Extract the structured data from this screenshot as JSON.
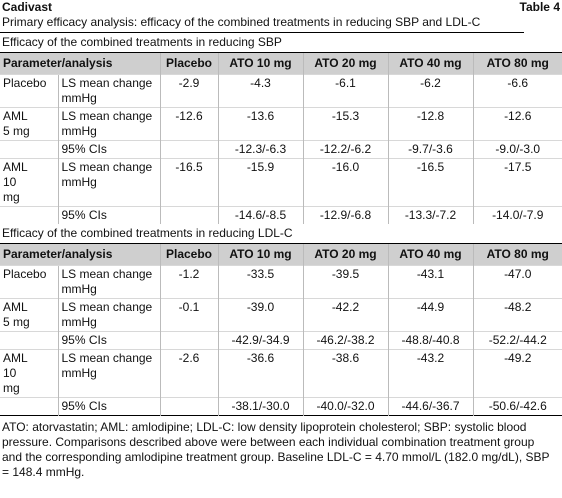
{
  "header": {
    "brand": "Cadivast",
    "table_label": "Table 4",
    "title": "Primary efficacy analysis: efficacy of the combined treatments in reducing SBP and LDL-C"
  },
  "columns": [
    "Parameter/analysis",
    "Placebo",
    "ATO 10 mg",
    "ATO 20 mg",
    "ATO 40 mg",
    "ATO 80 mg"
  ],
  "sections": [
    {
      "title": "Efficacy of the combined treatments in reducing SBP",
      "rows": [
        {
          "group": "Placebo",
          "analysis": "LS mean change mmHg",
          "cells": [
            "-2.9",
            "-4.3",
            "-6.1",
            "-6.2",
            "-6.6"
          ]
        },
        {
          "group": "AML 5 mg",
          "analysis": "LS mean change mmHg",
          "cells": [
            "-12.6",
            "-13.6",
            "-15.3",
            "-12.8",
            "-12.6"
          ]
        },
        {
          "analysis": "95% CIs",
          "cells": [
            null,
            "-12.3/-6.3",
            "-12.2/-6.2",
            "-9.7/-3.6",
            "-9.0/-3.0"
          ]
        },
        {
          "group": "AML 10 mg",
          "analysis": "LS mean change mmHg",
          "cells": [
            "-16.5",
            "-15.9",
            "-16.0",
            "-16.5",
            "-17.5"
          ]
        },
        {
          "analysis": "95% CIs",
          "cells": [
            null,
            "-14.6/-8.5",
            "-12.9/-6.8",
            "-13.3/-7.2",
            "-14.0/-7.9"
          ]
        }
      ]
    },
    {
      "title": "Efficacy of the combined treatments in reducing LDL-C",
      "rows": [
        {
          "group": "Placebo",
          "analysis": "LS mean change mmHg",
          "cells": [
            "-1.2",
            "-33.5",
            "-39.5",
            "-43.1",
            "-47.0"
          ]
        },
        {
          "group": "AML 5 mg",
          "analysis": "LS mean change mmHg",
          "cells": [
            "-0.1",
            "-39.0",
            "-42.2",
            "-44.9",
            "-48.2"
          ]
        },
        {
          "analysis": "95% CIs",
          "cells": [
            null,
            "-42.9/-34.9",
            "-46.2/-38.2",
            "-48.8/-40.8",
            "-52.2/-44.2"
          ]
        },
        {
          "group": "AML 10 mg",
          "analysis": "LS mean change mmHg",
          "cells": [
            "-2.6",
            "-36.6",
            "-38.6",
            "-43.2",
            "-49.2"
          ]
        },
        {
          "analysis": "95% CIs",
          "cells": [
            null,
            "-38.1/-30.0",
            "-40.0/-32.0",
            "-44.6/-36.7",
            "-50.6/-42.6"
          ]
        }
      ]
    }
  ],
  "footnote": "ATO: atorvastatin; AML: amlodipine; LDL-C: low density lipoprotein cholesterol; SBP: systolic blood pressure. Comparisons described above were between each individual combination treatment group and the corresponding amlodipine treatment group. Baseline LDL-C = 4.70 mmol/L (182.0 mg/dL), SBP = 148.4 mmHg."
}
